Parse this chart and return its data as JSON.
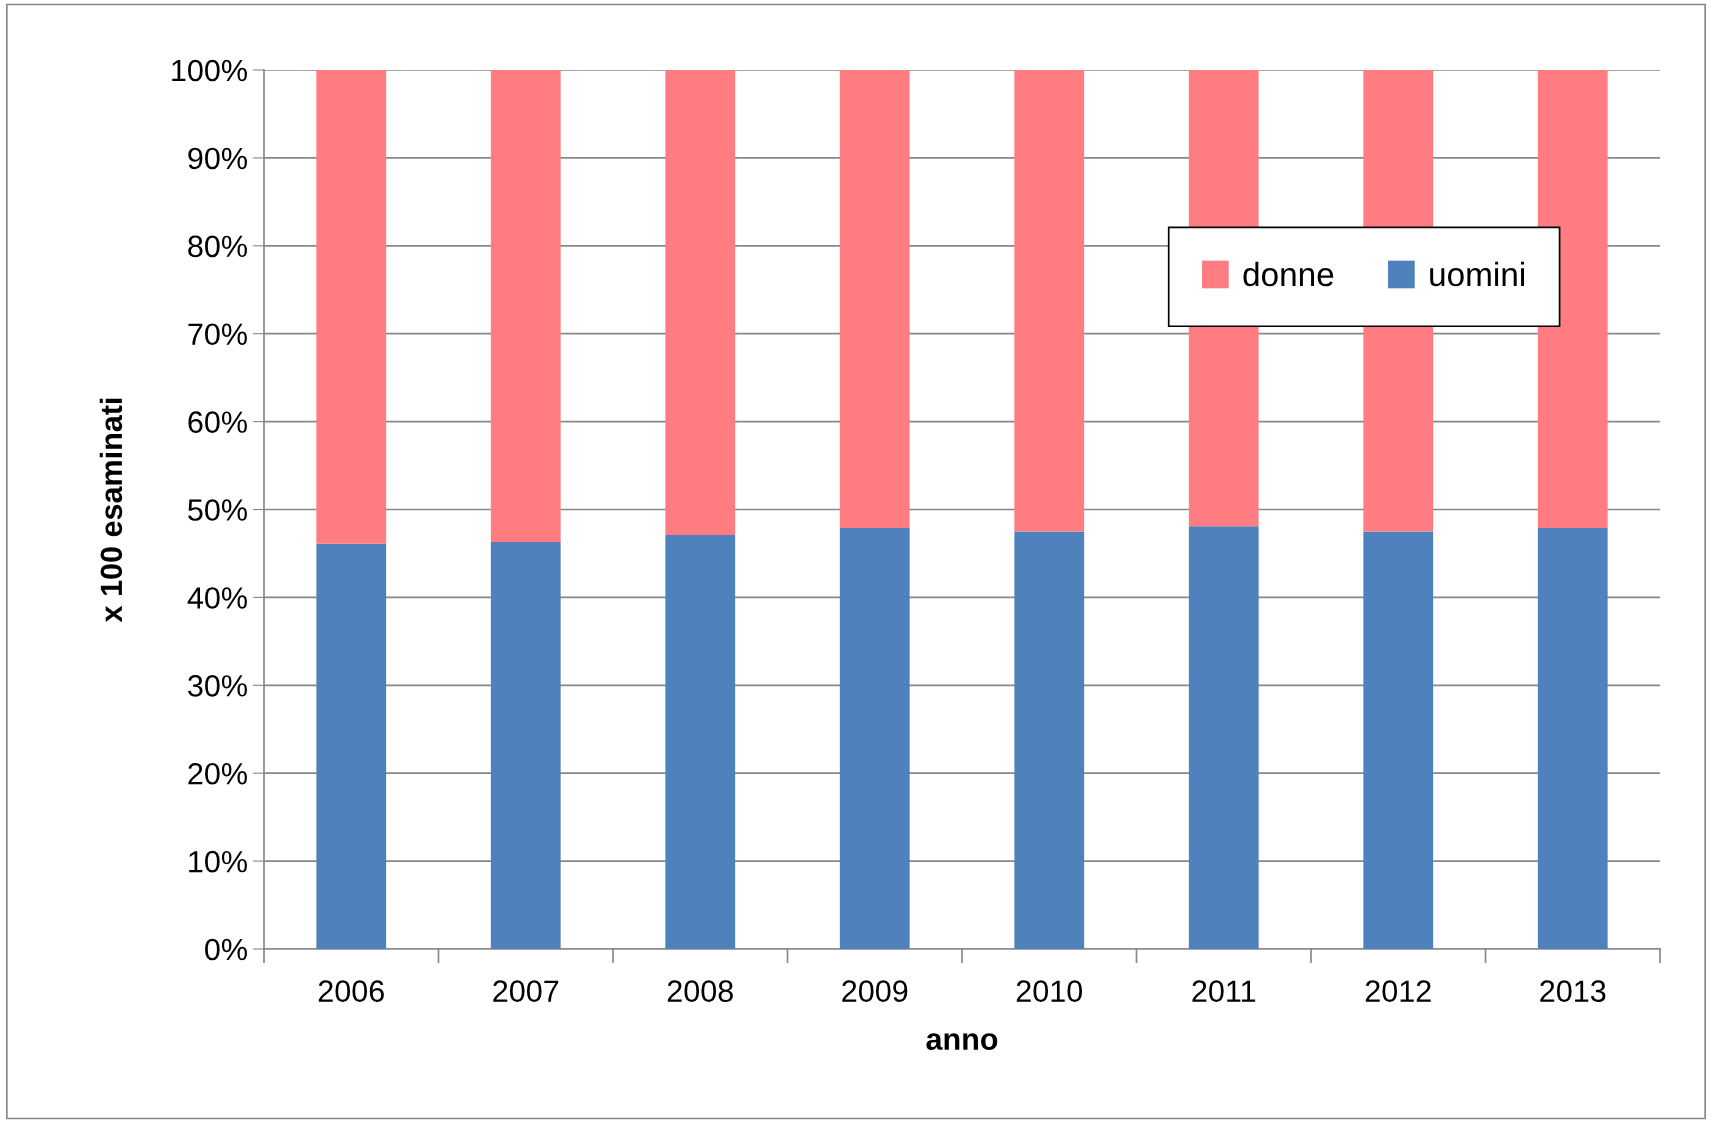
{
  "chart_data": {
    "type": "bar",
    "stacked": true,
    "xlabel": "anno",
    "ylabel": "x 100 esaminati",
    "categories": [
      "2006",
      "2007",
      "2008",
      "2009",
      "2010",
      "2011",
      "2012",
      "2013"
    ],
    "series": [
      {
        "name": "uomini",
        "color": "#4f81bd",
        "values": [
          46.1,
          46.3,
          47.1,
          47.9,
          47.5,
          48.1,
          47.5,
          47.9
        ]
      },
      {
        "name": "donne",
        "color": "#ff7c80",
        "values": [
          53.9,
          53.7,
          52.9,
          52.1,
          52.5,
          51.9,
          52.5,
          52.1
        ]
      }
    ],
    "ylim": [
      0,
      100
    ],
    "yticks": [
      {
        "value": 0,
        "label": "0%"
      },
      {
        "value": 10,
        "label": "10%"
      },
      {
        "value": 20,
        "label": "20%"
      },
      {
        "value": 30,
        "label": "30%"
      },
      {
        "value": 40,
        "label": "40%"
      },
      {
        "value": 50,
        "label": "50%"
      },
      {
        "value": 60,
        "label": "60%"
      },
      {
        "value": 70,
        "label": "70%"
      },
      {
        "value": 80,
        "label": "80%"
      },
      {
        "value": 90,
        "label": "90%"
      },
      {
        "value": 100,
        "label": "100%"
      }
    ],
    "grid": "y",
    "legend": "top right"
  }
}
